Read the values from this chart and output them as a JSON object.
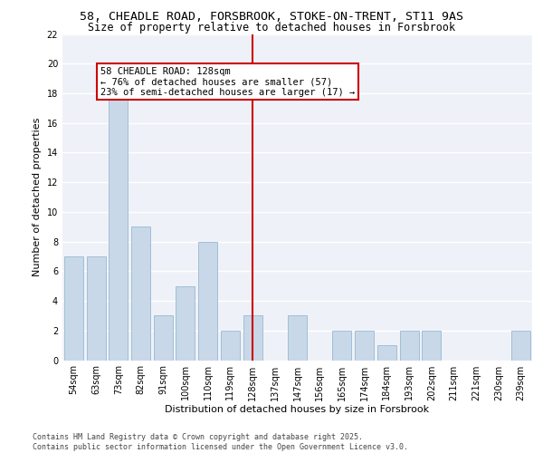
{
  "title_line1": "58, CHEADLE ROAD, FORSBROOK, STOKE-ON-TRENT, ST11 9AS",
  "title_line2": "Size of property relative to detached houses in Forsbrook",
  "xlabel": "Distribution of detached houses by size in Forsbrook",
  "ylabel": "Number of detached properties",
  "categories": [
    "54sqm",
    "63sqm",
    "73sqm",
    "82sqm",
    "91sqm",
    "100sqm",
    "110sqm",
    "119sqm",
    "128sqm",
    "137sqm",
    "147sqm",
    "156sqm",
    "165sqm",
    "174sqm",
    "184sqm",
    "193sqm",
    "202sqm",
    "211sqm",
    "221sqm",
    "230sqm",
    "239sqm"
  ],
  "values": [
    7,
    7,
    18,
    9,
    3,
    5,
    8,
    2,
    3,
    0,
    3,
    0,
    2,
    2,
    1,
    2,
    2,
    0,
    0,
    0,
    2
  ],
  "bar_color": "#c8d8e8",
  "bar_edge_color": "#8ab0cc",
  "highlight_index": 8,
  "highlight_line_color": "#cc0000",
  "annotation_text": "58 CHEADLE ROAD: 128sqm\n← 76% of detached houses are smaller (57)\n23% of semi-detached houses are larger (17) →",
  "annotation_box_color": "#cc0000",
  "ylim": [
    0,
    22
  ],
  "yticks": [
    0,
    2,
    4,
    6,
    8,
    10,
    12,
    14,
    16,
    18,
    20,
    22
  ],
  "background_color": "#eef2f8",
  "grid_color": "#ffffff",
  "footer_text": "Contains HM Land Registry data © Crown copyright and database right 2025.\nContains public sector information licensed under the Open Government Licence v3.0.",
  "title_fontsize": 9.5,
  "subtitle_fontsize": 8.5,
  "axis_label_fontsize": 8,
  "tick_fontsize": 7,
  "annotation_fontsize": 7.5,
  "footer_fontsize": 6.0
}
